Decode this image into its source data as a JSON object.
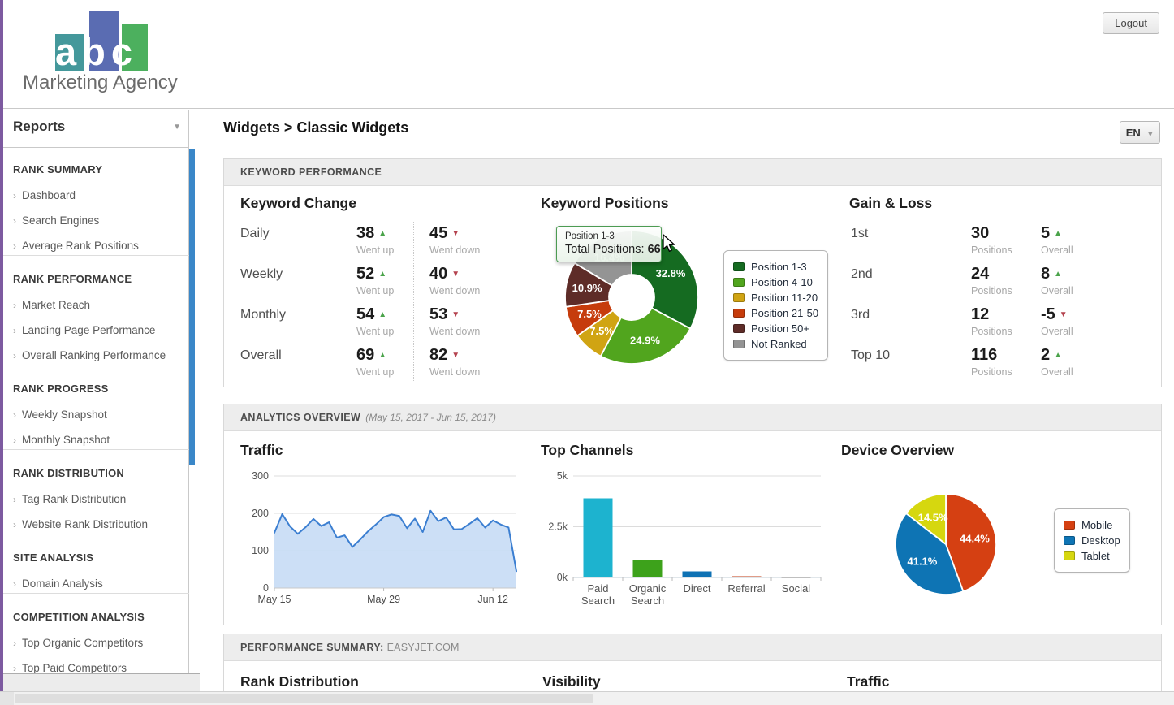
{
  "header": {
    "logo_text": "abc",
    "logo_subtitle": "Marketing Agency",
    "logout_label": "Logout"
  },
  "sidebar": {
    "title": "Reports",
    "sections": [
      {
        "header": "RANK SUMMARY",
        "items": [
          "Dashboard",
          "Search Engines",
          "Average Rank Positions"
        ]
      },
      {
        "header": "RANK PERFORMANCE",
        "items": [
          "Market Reach",
          "Landing Page Performance",
          "Overall Ranking Performance"
        ]
      },
      {
        "header": "RANK PROGRESS",
        "items": [
          "Weekly Snapshot",
          "Monthly Snapshot"
        ]
      },
      {
        "header": "RANK DISTRIBUTION",
        "items": [
          "Tag Rank Distribution",
          "Website Rank Distribution"
        ]
      },
      {
        "header": "SITE ANALYSIS",
        "items": [
          "Domain Analysis"
        ]
      },
      {
        "header": "COMPETITION ANALYSIS",
        "items": [
          "Top Organic Competitors",
          "Top Paid Competitors"
        ]
      }
    ]
  },
  "main": {
    "breadcrumb": "Widgets > Classic Widgets",
    "language": "EN",
    "panels": {
      "keyword_performance": {
        "header": "KEYWORD PERFORMANCE",
        "keyword_change": {
          "title": "Keyword Change",
          "up_caption": "Went up",
          "down_caption": "Went down",
          "rows": [
            {
              "label": "Daily",
              "up": 38,
              "down": 45
            },
            {
              "label": "Weekly",
              "up": 52,
              "down": 40
            },
            {
              "label": "Monthly",
              "up": 54,
              "down": 53
            },
            {
              "label": "Overall",
              "up": 69,
              "down": 82
            }
          ]
        },
        "keyword_positions": {
          "title": "Keyword Positions",
          "tooltip": {
            "label": "Position 1-3",
            "text": "Total Positions:",
            "value": 66
          }
        },
        "gain_loss": {
          "title": "Gain & Loss",
          "positions_caption": "Positions",
          "overall_caption": "Overall",
          "rows": [
            {
              "label": "1st",
              "positions": 30,
              "overall": 5,
              "direction": "up"
            },
            {
              "label": "2nd",
              "positions": 24,
              "overall": 8,
              "direction": "up"
            },
            {
              "label": "3rd",
              "positions": 12,
              "overall": -5,
              "direction": "down"
            },
            {
              "label": "Top 10",
              "positions": 116,
              "overall": 2,
              "direction": "up"
            }
          ]
        }
      },
      "analytics_overview": {
        "header": "ANALYTICS OVERVIEW",
        "date_range": "(May 15, 2017 - Jun 15, 2017)",
        "traffic_title": "Traffic",
        "top_channels_title": "Top Channels",
        "device_overview_title": "Device Overview"
      },
      "performance_summary": {
        "header": "PERFORMANCE SUMMARY:",
        "domain": "EASYJET.COM",
        "sections": [
          "Rank Distribution",
          "Visibility",
          "Traffic"
        ]
      }
    }
  },
  "chart_data": [
    {
      "name": "keyword_positions_donut",
      "type": "pie",
      "donut": true,
      "value_suffix": "%",
      "legend_position": "right",
      "slices": [
        {
          "label": "Position 1-3",
          "value": 32.8,
          "color": "#156b21"
        },
        {
          "label": "Position 4-10",
          "value": 24.9,
          "color": "#51a51e"
        },
        {
          "label": "Position 11-20",
          "value": 7.5,
          "color": "#d0a413"
        },
        {
          "label": "Position 21-50",
          "value": 7.5,
          "color": "#c63c0c"
        },
        {
          "label": "Position 50+",
          "value": 10.9,
          "color": "#5e2c28"
        },
        {
          "label": "Not Ranked",
          "value": 16.4,
          "color": "#949494"
        }
      ],
      "hover": {
        "slice": "Position 1-3",
        "total_positions": 66
      }
    },
    {
      "name": "traffic",
      "type": "area",
      "title": "Traffic",
      "ylim": [
        0,
        300
      ],
      "yticks": [
        0,
        100,
        200,
        300
      ],
      "x_ticks": [
        {
          "index": 0,
          "label": "May 15"
        },
        {
          "index": 14,
          "label": "May 29"
        },
        {
          "index": 28,
          "label": "Jun 12"
        }
      ],
      "values": [
        148,
        198,
        165,
        145,
        163,
        185,
        166,
        176,
        135,
        141,
        110,
        130,
        152,
        170,
        190,
        197,
        193,
        160,
        186,
        150,
        207,
        179,
        189,
        157,
        158,
        172,
        187,
        162,
        181,
        170,
        162,
        45
      ],
      "line_color": "#3c7fd1",
      "fill_color": "#c7dcf5"
    },
    {
      "name": "top_channels",
      "type": "bar",
      "title": "Top Channels",
      "categories": [
        "Paid Search",
        "Organic Search",
        "Direct",
        "Referral",
        "Social"
      ],
      "values": [
        3900,
        850,
        300,
        60,
        15
      ],
      "colors": [
        "#1db3cf",
        "#3da21b",
        "#0f72b4",
        "#c03a10",
        "#999999"
      ],
      "ylim": [
        0,
        5000
      ],
      "yticks": [
        {
          "value": 0,
          "label": "0k"
        },
        {
          "value": 2500,
          "label": "2.5k"
        },
        {
          "value": 5000,
          "label": "5k"
        }
      ]
    },
    {
      "name": "device_overview",
      "type": "pie",
      "title": "Device Overview",
      "value_suffix": "%",
      "legend_position": "right",
      "slices": [
        {
          "label": "Mobile",
          "value": 44.4,
          "color": "#d54012"
        },
        {
          "label": "Desktop",
          "value": 41.1,
          "color": "#0e74b4"
        },
        {
          "label": "Tablet",
          "value": 14.5,
          "color": "#d6d70f"
        }
      ]
    }
  ]
}
